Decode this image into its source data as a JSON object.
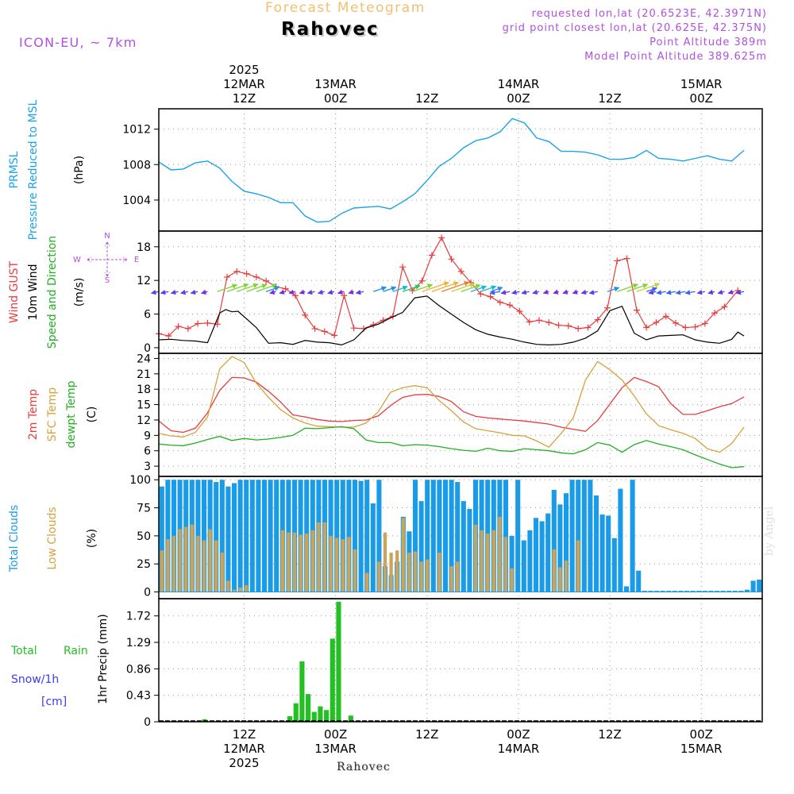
{
  "header": {
    "title": "Forecast Meteogram",
    "location": "Rahovec",
    "model": "ICON-EU, ~ 7km",
    "requested": "requested lon,lat (20.6523E, 42.3971N)",
    "grid_point": "grid point closest lon,lat (20.625E, 42.375N)",
    "point_altitude": "Point Altitude 389m",
    "model_altitude": "Model Point Altitude 389.625m",
    "footer_location": "Rahovec",
    "credit": "by Angel"
  },
  "colors": {
    "pressure": "#1aa3e8",
    "gust": "#e83c3c",
    "wind": "#000000",
    "t2m": "#e83c3c",
    "sfc": "#d8a03c",
    "dewpt": "#20b020",
    "total_clouds": "#1a9be8",
    "low_clouds": "#c9a45a",
    "rain": "#22c022",
    "snow": "#3c3cf0",
    "purple": "#b050e0",
    "title": "#f0c070"
  },
  "chart_data": [
    {
      "type": "line",
      "name": "pressure",
      "ylabels": [
        "PRMSL",
        "Pressure Reduced to MSL"
      ],
      "unit": "(hPa)",
      "ylim": [
        1000.5,
        1014.3
      ],
      "yticks": [
        1004,
        1008,
        1012
      ],
      "x": [
        0,
        2,
        4,
        6,
        8,
        10,
        12,
        14,
        16,
        18,
        20,
        22,
        24,
        26,
        28,
        30,
        32,
        34,
        36,
        38,
        40,
        42,
        44,
        46,
        48,
        50,
        52,
        54,
        56,
        58,
        60,
        62,
        64,
        66,
        68,
        70,
        72,
        74,
        76,
        78,
        80,
        82,
        84,
        86,
        88,
        90,
        92,
        94,
        96
      ],
      "series": [
        {
          "values": [
            1008.3,
            1007.4,
            1007.5,
            1008.2,
            1008.4,
            1007.6,
            1006.1,
            1005.0,
            1004.7,
            1004.3,
            1003.7,
            1003.7,
            1002.2,
            1001.5,
            1001.6,
            1002.5,
            1003.1,
            1003.2,
            1003.3,
            1003.0,
            1003.8,
            1004.7,
            1006.2,
            1007.8,
            1008.7,
            1009.9,
            1010.7,
            1011.0,
            1011.7,
            1013.2,
            1012.7,
            1011.0,
            1010.6,
            1009.5,
            1009.5,
            1009.4,
            1009.1,
            1008.6,
            1008.6,
            1008.8,
            1009.6,
            1008.7,
            1008.6,
            1008.4,
            1008.7,
            1009.0,
            1008.6,
            1008.4,
            1009.6
          ]
        }
      ]
    },
    {
      "type": "line",
      "name": "wind",
      "ylabels": [
        "Wind GUST",
        "10m Wind",
        "Speed and Direction"
      ],
      "unit": "(m/s)",
      "ylim": [
        -1,
        20.8
      ],
      "yticks": [
        0,
        6,
        12,
        18
      ],
      "compass": {
        "n": "N",
        "s": "S",
        "e": "E",
        "w": "W"
      },
      "x": [
        0,
        2,
        4,
        6,
        8,
        10,
        12,
        14,
        16,
        18,
        20,
        22,
        24,
        26,
        28,
        30,
        32,
        34,
        36,
        38,
        40,
        42,
        44,
        46,
        48,
        50,
        52,
        54,
        56,
        58,
        60,
        62,
        64,
        66,
        68,
        70,
        72,
        74,
        76,
        78,
        80,
        82,
        84,
        86,
        88,
        90,
        92,
        94,
        96
      ],
      "series": [
        {
          "name": "gust",
          "values": [
            2.5,
            2.1,
            3.8,
            3.4,
            4.3,
            4.4,
            4.2,
            12.6,
            13.6,
            13.2,
            12.6,
            11.9,
            10.9,
            10.5,
            9.3,
            5.8,
            3.4,
            2.9,
            2.2,
            9.3,
            3.5,
            3.4,
            4.1,
            4.9,
            5.6,
            14.4,
            10.2,
            11.9,
            16.5,
            19.6,
            15.8,
            13.6,
            11.6,
            9.6,
            9.1,
            8.1,
            7.6,
            6.5,
            4.6,
            4.9,
            4.5,
            4.0,
            3.9,
            3.4,
            3.6,
            5.0,
            7.1,
            15.5,
            15.9,
            6.7,
            3.6,
            4.5,
            5.6,
            4.4,
            3.6,
            3.7,
            4.3,
            6.2,
            7.3,
            10.2
          ],
          "x": [
            0,
            1.6,
            3.2,
            4.8,
            6.4,
            8,
            9.6,
            11.2,
            12.8,
            14.4,
            16,
            17.6,
            19.2,
            20.8,
            22.4,
            24,
            25.6,
            27.2,
            28.8,
            30.4,
            32,
            33.6,
            35.2,
            36.8,
            38.4,
            40,
            41.6,
            43.2,
            44.8,
            46.4,
            48,
            49.6,
            51.2,
            52.8,
            54.4,
            56,
            57.6,
            59.2,
            60.8,
            62.4,
            64,
            65.6,
            67.2,
            68.8,
            70.4,
            72,
            73.6,
            75.2,
            76.8,
            78.4,
            80,
            81.6,
            83.2,
            84.8,
            86.4,
            88,
            89.6,
            91.2,
            92.8,
            95
          ]
        },
        {
          "name": "10m",
          "values": [
            1.4,
            1.5,
            1.3,
            1.2,
            0.9,
            6.2,
            6.8,
            6.4,
            6.5,
            3.6,
            0.8,
            0.9,
            0.6,
            1.3,
            1.0,
            0.9,
            0.5,
            1.4,
            3.5,
            4.2,
            5.3,
            6.3,
            8.9,
            9.2,
            7.5,
            6.0,
            4.5,
            3.2,
            2.4,
            1.9,
            1.5,
            1.0,
            0.6,
            0.5,
            0.6,
            1.0,
            1.7,
            3.0,
            6.6,
            7.4,
            2.6,
            1.4,
            2.1,
            2.2,
            2.3,
            1.4,
            1.0,
            0.8,
            1.5,
            2.8,
            2.1
          ],
          "x": [
            0,
            2,
            4,
            6,
            8,
            10,
            11,
            12,
            13,
            16,
            18,
            20,
            22,
            24,
            26,
            28,
            30,
            32,
            34,
            36,
            38,
            40,
            42,
            44,
            46,
            48,
            50,
            52,
            54,
            56,
            58,
            60,
            62,
            64,
            66,
            68,
            70,
            72,
            74,
            76,
            78,
            80,
            82,
            84,
            86,
            88,
            90,
            92,
            94,
            95,
            96
          ]
        }
      ]
    },
    {
      "type": "line",
      "name": "temperature",
      "ylabels": [
        "2m Temp",
        "SFC Temp",
        "dewpt Temp"
      ],
      "unit": "(C)",
      "ylim": [
        1,
        25
      ],
      "yticks": [
        3,
        6,
        9,
        12,
        15,
        18,
        21,
        24
      ],
      "x": [
        0,
        2,
        4,
        6,
        8,
        10,
        12,
        14,
        16,
        18,
        20,
        22,
        24,
        26,
        28,
        30,
        32,
        34,
        36,
        38,
        40,
        42,
        44,
        46,
        48,
        50,
        52,
        54,
        56,
        58,
        60,
        62,
        64,
        66,
        68,
        70,
        72,
        74,
        76,
        78,
        80,
        82,
        84,
        86,
        88,
        90,
        92,
        94,
        96
      ],
      "series": [
        {
          "name": "t2m",
          "values": [
            11.8,
            9.9,
            9.6,
            10.4,
            13.4,
            17.8,
            20.3,
            20.2,
            19.4,
            17.6,
            15.5,
            13.0,
            12.6,
            12.1,
            11.8,
            11.7,
            11.9,
            12.0,
            12.8,
            14.8,
            16.4,
            16.9,
            17.0,
            16.6,
            15.6,
            13.6,
            12.7,
            12.4,
            12.2,
            12.0,
            11.8,
            11.5,
            11.2,
            10.6,
            10.2,
            9.8,
            11.9,
            15.1,
            18.3,
            20.3,
            19.5,
            18.5,
            15.2,
            13.1,
            13.1,
            13.8,
            14.6,
            15.2,
            16.5
          ]
        },
        {
          "name": "sfc",
          "values": [
            9.4,
            8.9,
            8.7,
            9.6,
            12.6,
            22.0,
            24.4,
            23.2,
            19.2,
            16.4,
            14.0,
            12.4,
            11.4,
            10.8,
            10.7,
            10.6,
            10.6,
            11.4,
            13.6,
            17.4,
            18.3,
            18.7,
            18.3,
            15.8,
            13.8,
            11.6,
            10.3,
            9.9,
            9.5,
            9.0,
            8.9,
            7.9,
            6.7,
            9.4,
            12.4,
            19.8,
            23.4,
            21.8,
            19.8,
            16.7,
            13.2,
            10.9,
            10.1,
            9.4,
            8.4,
            6.4,
            5.7,
            7.4,
            10.6
          ]
        },
        {
          "name": "dewpt",
          "values": [
            7.3,
            7.1,
            7.0,
            7.5,
            8.2,
            8.8,
            8.0,
            8.4,
            8.1,
            8.3,
            8.6,
            9.0,
            10.4,
            10.3,
            10.5,
            10.7,
            10.3,
            8.1,
            7.6,
            7.6,
            7.0,
            7.2,
            7.1,
            6.8,
            6.4,
            6.1,
            5.9,
            6.5,
            6.0,
            5.9,
            6.4,
            6.2,
            6.0,
            5.6,
            5.4,
            6.2,
            7.6,
            7.1,
            5.7,
            7.2,
            8.0,
            7.3,
            6.8,
            6.2,
            5.2,
            4.3,
            3.4,
            2.7,
            2.9
          ]
        }
      ]
    },
    {
      "type": "bar",
      "name": "clouds",
      "ylabels": [
        "Total Clouds",
        "Low Clouds"
      ],
      "unit": "(%)",
      "ylim": [
        -6,
        103
      ],
      "yticks": [
        0,
        25,
        50,
        75,
        100
      ],
      "x_start": 0,
      "x_step": 1,
      "series": [
        {
          "name": "total",
          "values": [
            94,
            100,
            100,
            100,
            100,
            100,
            100,
            100,
            100,
            98,
            100,
            94,
            97,
            100,
            100,
            100,
            100,
            100,
            100,
            100,
            100,
            100,
            100,
            100,
            100,
            100,
            100,
            100,
            100,
            100,
            100,
            100,
            100,
            99,
            100,
            79,
            100,
            23,
            15,
            27,
            67,
            54,
            100,
            81,
            100,
            100,
            100,
            100,
            100,
            98,
            81,
            74,
            100,
            100,
            100,
            100,
            100,
            100,
            50,
            100,
            46,
            55,
            66,
            63,
            70,
            91,
            78,
            88,
            100,
            100,
            100,
            100,
            86,
            69,
            68,
            48,
            92,
            5,
            100,
            19,
            1,
            1,
            1,
            1,
            1,
            1,
            1,
            1,
            1,
            1,
            1,
            1,
            1,
            1,
            1,
            1,
            1,
            2,
            10,
            11
          ]
        },
        {
          "name": "low",
          "values": [
            37,
            47,
            50,
            56,
            58,
            60,
            50,
            46,
            56,
            46,
            35,
            10,
            2,
            4,
            6,
            0,
            0,
            0,
            0,
            0,
            55,
            53,
            53,
            51,
            52,
            55,
            62,
            62,
            50,
            48,
            47,
            49,
            38,
            0,
            17,
            0,
            27,
            53,
            35,
            37,
            66,
            35,
            36,
            27,
            29,
            0,
            35,
            0,
            23,
            27,
            0,
            0,
            60,
            55,
            52,
            55,
            67,
            49,
            21,
            0,
            0,
            0,
            0,
            0,
            0,
            38,
            22,
            28,
            0,
            46,
            0,
            0,
            0,
            0,
            0,
            0,
            0,
            0,
            0,
            0,
            0,
            0,
            0,
            0,
            0,
            0,
            0,
            0,
            0,
            0,
            0,
            0,
            0,
            0,
            0,
            0,
            0,
            0,
            0,
            0
          ]
        }
      ]
    },
    {
      "type": "bar",
      "name": "precip",
      "ylabels": [
        "Total",
        "Rain",
        "Snow/1h",
        "[cm]"
      ],
      "unit": "1hr Precip (mm)",
      "ylim": [
        0,
        2.0
      ],
      "yticks": [
        0,
        0.43,
        0.86,
        1.29,
        1.72
      ],
      "ytick_labels": [
        "0",
        "0.43",
        "0.86",
        "1.29",
        "1.72"
      ],
      "x_start": 0,
      "x_step": 1,
      "series": [
        {
          "name": "rain",
          "values": [
            0,
            0,
            0,
            0,
            0,
            0,
            0,
            0.04,
            0,
            0,
            0,
            0,
            0,
            0,
            0,
            0,
            0,
            0,
            0,
            0,
            0,
            0.09,
            0.3,
            0.98,
            0.45,
            0.16,
            0.25,
            0.19,
            1.35,
            1.95,
            0,
            0.1,
            0,
            0,
            0,
            0,
            0,
            0,
            0,
            0,
            0,
            0,
            0,
            0,
            0,
            0,
            0,
            0,
            0,
            0,
            0,
            0,
            0,
            0,
            0,
            0,
            0,
            0,
            0,
            0,
            0,
            0,
            0,
            0,
            0,
            0,
            0,
            0,
            0,
            0,
            0,
            0,
            0,
            0,
            0,
            0,
            0,
            0,
            0,
            0,
            0,
            0,
            0,
            0,
            0,
            0,
            0,
            0,
            0,
            0,
            0,
            0,
            0,
            0,
            0,
            0,
            0
          ]
        }
      ]
    }
  ],
  "time_axis": {
    "top_labels": [
      {
        "x": 14,
        "lines": [
          "2025",
          "12MAR",
          "12Z"
        ]
      },
      {
        "x": 29,
        "lines": [
          "13MAR",
          "00Z"
        ]
      },
      {
        "x": 44,
        "lines": [
          "12Z"
        ]
      },
      {
        "x": 59,
        "lines": [
          "14MAR",
          "00Z"
        ]
      },
      {
        "x": 74,
        "lines": [
          "12Z"
        ]
      },
      {
        "x": 89,
        "lines": [
          "15MAR",
          "00Z"
        ]
      }
    ],
    "bottom_labels": [
      {
        "x": 14,
        "lines": [
          "12Z",
          "12MAR",
          "2025"
        ]
      },
      {
        "x": 29,
        "lines": [
          "00Z",
          "13MAR"
        ]
      },
      {
        "x": 44,
        "lines": [
          "12Z"
        ]
      },
      {
        "x": 59,
        "lines": [
          "00Z",
          "14MAR"
        ]
      },
      {
        "x": 74,
        "lines": [
          "12Z"
        ]
      },
      {
        "x": 89,
        "lines": [
          "00Z",
          "15MAR"
        ]
      }
    ]
  }
}
